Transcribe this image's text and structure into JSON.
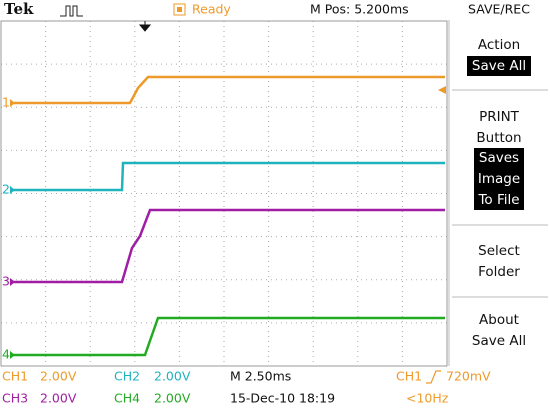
{
  "header": {
    "brand": "Tek",
    "status": "Ready",
    "position": "M Pos: 5.200ms",
    "menu_title": "SAVE/REC"
  },
  "markers": [
    "1",
    "2",
    "3",
    "4"
  ],
  "menu": [
    {
      "lines": [
        "Action",
        "Save All"
      ]
    },
    {
      "lines": [
        "PRINT",
        "Button",
        "Saves",
        "Image",
        "To File"
      ]
    },
    {
      "lines": [
        "Select",
        "Folder"
      ]
    },
    {
      "lines": [
        "About",
        "Save All"
      ]
    }
  ],
  "footer": {
    "row1": {
      "ch1": "CH1",
      "ch1_scale": "2.00V",
      "ch2": "CH2",
      "ch2_scale": "2.00V",
      "timebase": "M 2.50ms",
      "trigger_source": "CH1",
      "trigger_level": "720mV"
    },
    "row2": {
      "ch3": "CH3",
      "ch3_scale": "2.00V",
      "ch4": "CH4",
      "ch4_scale": "2.00V",
      "date": "15-Dec-10 18:19",
      "frequency": "<10Hz"
    }
  }
}
